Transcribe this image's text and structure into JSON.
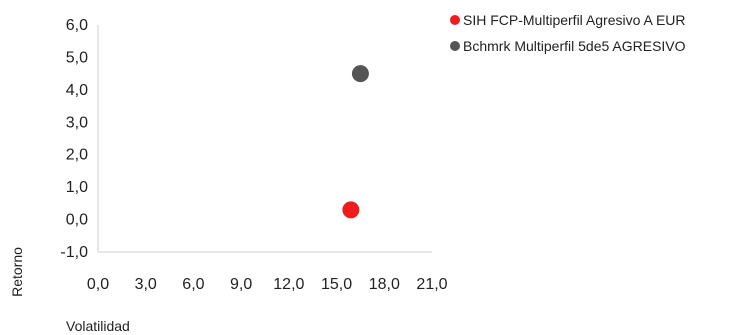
{
  "chart_data": {
    "type": "scatter",
    "title": "",
    "xlabel": "Volatilidad",
    "ylabel": "Retorno",
    "xlim": [
      0,
      21
    ],
    "ylim": [
      -1,
      6
    ],
    "x_ticks": [
      "0,0",
      "3,0",
      "6,0",
      "9,0",
      "12,0",
      "15,0",
      "18,0",
      "21,0"
    ],
    "y_ticks": [
      "6,0",
      "5,0",
      "4,0",
      "3,0",
      "2,0",
      "1,0",
      "0,0",
      "-1,0"
    ],
    "grid": false,
    "legend_position": "top-right",
    "series": [
      {
        "name": "SIH FCP-Multiperfil Agresivo A EUR",
        "color": "#ee1c1c",
        "points": [
          {
            "x": 15.9,
            "y": 0.3
          }
        ]
      },
      {
        "name": "Bchmrk Multiperfil 5de5 AGRESIVO",
        "color": "#555555",
        "points": [
          {
            "x": 16.5,
            "y": 4.5
          }
        ]
      }
    ]
  }
}
